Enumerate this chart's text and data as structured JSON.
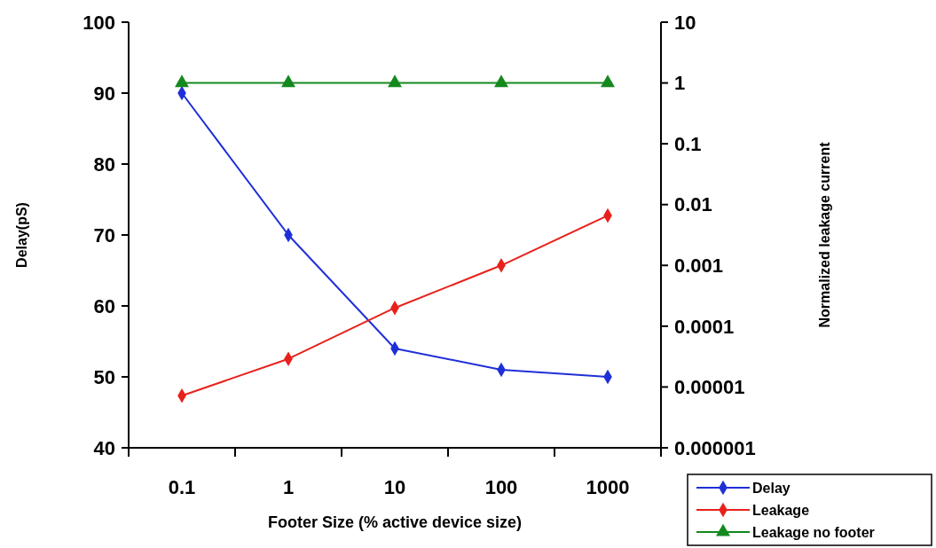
{
  "chart_data": {
    "type": "line",
    "xlabel": "Footer Size (% active device size)",
    "ylabel": "Delay(pS)",
    "y2label": "Normalized leakage current",
    "categories": [
      "0.1",
      "1",
      "10",
      "100",
      "1000"
    ],
    "series": [
      {
        "name": "Delay",
        "color": "#1f2fd8",
        "values": [
          90,
          70,
          54,
          51,
          50
        ],
        "marker": "diamond"
      },
      {
        "name": "Leakage",
        "color": "#e8211b",
        "values": [
          7.2e-06,
          2.9e-05,
          0.0002,
          0.001,
          0.0066
        ],
        "axis": "y2",
        "marker": "diamond"
      },
      {
        "name": "Leakage no footer",
        "color": "#14891e",
        "values": [
          1,
          1,
          1,
          1,
          1
        ],
        "axis": "y2",
        "marker": "triangle"
      }
    ],
    "ylim": [
      40,
      100
    ],
    "yticks": [
      40,
      50,
      60,
      70,
      80,
      90,
      100
    ],
    "y2lim": [
      1e-06,
      10
    ],
    "y2ticks": [
      {
        "value": 1e-06,
        "label": "0.000001"
      },
      {
        "value": 1e-05,
        "label": "0.00001"
      },
      0.0001,
      0.001,
      0.01,
      0.1,
      1,
      10
    ],
    "log": "y2",
    "grid": false,
    "legend": "bottom right"
  }
}
